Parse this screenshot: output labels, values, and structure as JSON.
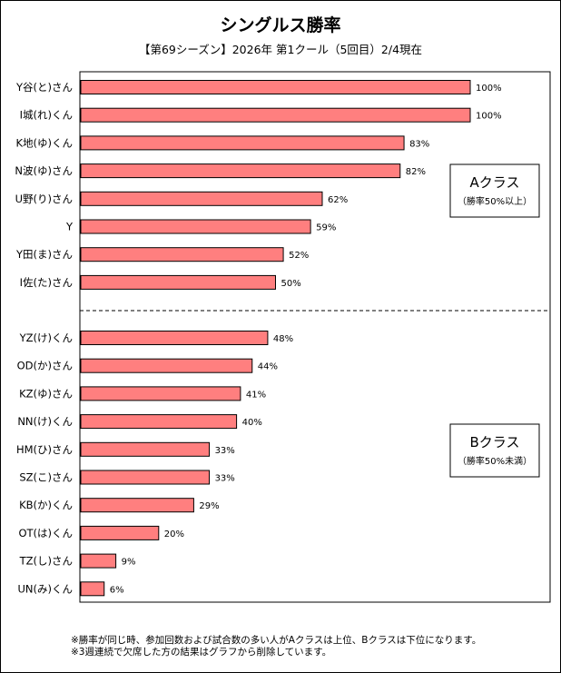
{
  "title": "シングルス勝率",
  "subtitle": "【第69シーズン】2026年 第1クール（5回目）2/4現在",
  "footnotes": [
    "※勝率が同じ時、参加回数および試合数の多い人がAクラスは上位、Bクラスは下位になります。",
    "※3週連続で欠席した方の結果はグラフから削除しています。"
  ],
  "colors": {
    "bar": "#ff7f7f",
    "bar_stroke": "#000000"
  },
  "chart_data": {
    "type": "bar",
    "orientation": "horizontal",
    "xlim": [
      0,
      100
    ],
    "value_suffix": "%",
    "grid": false,
    "categories": [
      "Y谷(と)さん",
      "I城(れ)くん",
      "K地(ゆ)くん",
      "N波(ゆ)さん",
      "U野(り)さん",
      "Y",
      "Y田(ま)さん",
      "I佐(た)さん",
      "YZ(け)くん",
      "OD(か)さん",
      "KZ(ゆ)さん",
      "NN(け)くん",
      "HM(ひ)さん",
      "SZ(こ)さん",
      "KB(か)くん",
      "OT(は)くん",
      "TZ(し)さん",
      "UN(み)くん"
    ],
    "values": [
      100,
      100,
      83,
      82,
      62,
      59,
      52,
      50,
      48,
      44,
      41,
      40,
      33,
      33,
      29,
      20,
      9,
      6
    ],
    "groups": [
      {
        "name": "Aクラス",
        "note": "（勝率50%以上）",
        "count": 8
      },
      {
        "name": "Bクラス",
        "note": "（勝率50%未満）",
        "count": 10
      }
    ]
  }
}
